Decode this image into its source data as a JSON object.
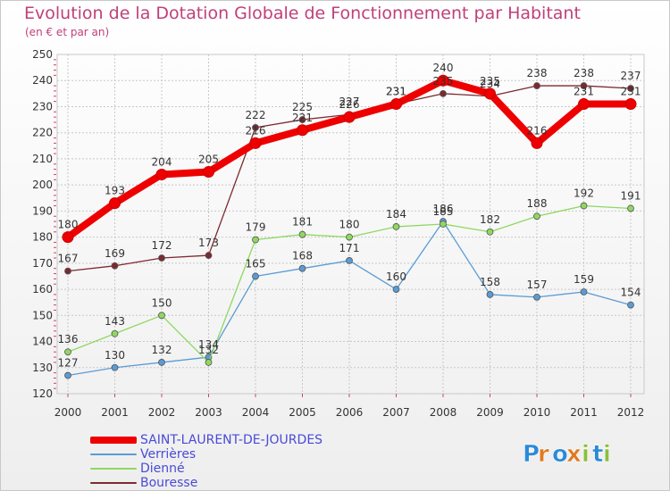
{
  "chart_data": {
    "type": "line",
    "title": "Evolution de la Dotation Globale de Fonctionnement par Habitant",
    "subtitle": "(en € et par an)",
    "xlabel": "",
    "ylabel": "",
    "categories": [
      "2000",
      "2001",
      "2002",
      "2003",
      "2004",
      "2005",
      "2006",
      "2007",
      "2008",
      "2009",
      "2010",
      "2011",
      "2012"
    ],
    "ylim": [
      120,
      250
    ],
    "yticks": [
      120,
      130,
      140,
      150,
      160,
      170,
      180,
      190,
      200,
      210,
      220,
      230,
      240,
      250
    ],
    "grid": true,
    "legend_position": "bottom-left",
    "series": [
      {
        "name": "SAINT-LAURENT-DE-JOURDES",
        "color": "#ee0000",
        "values": [
          180,
          193,
          204,
          205,
          216,
          221,
          226,
          231,
          240,
          235,
          216,
          231,
          231
        ]
      },
      {
        "name": "Verrières",
        "color": "#5b9bd5",
        "values": [
          127,
          130,
          132,
          134,
          165,
          168,
          171,
          160,
          186,
          158,
          157,
          159,
          154
        ]
      },
      {
        "name": "Dienné",
        "color": "#8ed860",
        "values": [
          136,
          143,
          150,
          132,
          179,
          181,
          180,
          184,
          185,
          182,
          188,
          192,
          191
        ]
      },
      {
        "name": "Bouresse",
        "color": "#7b2a30",
        "values": [
          167,
          169,
          172,
          173,
          222,
          225,
          227,
          231,
          235,
          234,
          238,
          238,
          237
        ]
      }
    ]
  },
  "logo": {
    "text": "Proxiti",
    "letters": [
      "P",
      "r",
      "o",
      "x",
      "i",
      "t",
      "i"
    ],
    "colors": [
      "#2a8ad8",
      "#e07a20",
      "#2a8ad8",
      "#e07a20",
      "#8bbf3a",
      "#2a8ad8",
      "#8bbf3a"
    ]
  }
}
